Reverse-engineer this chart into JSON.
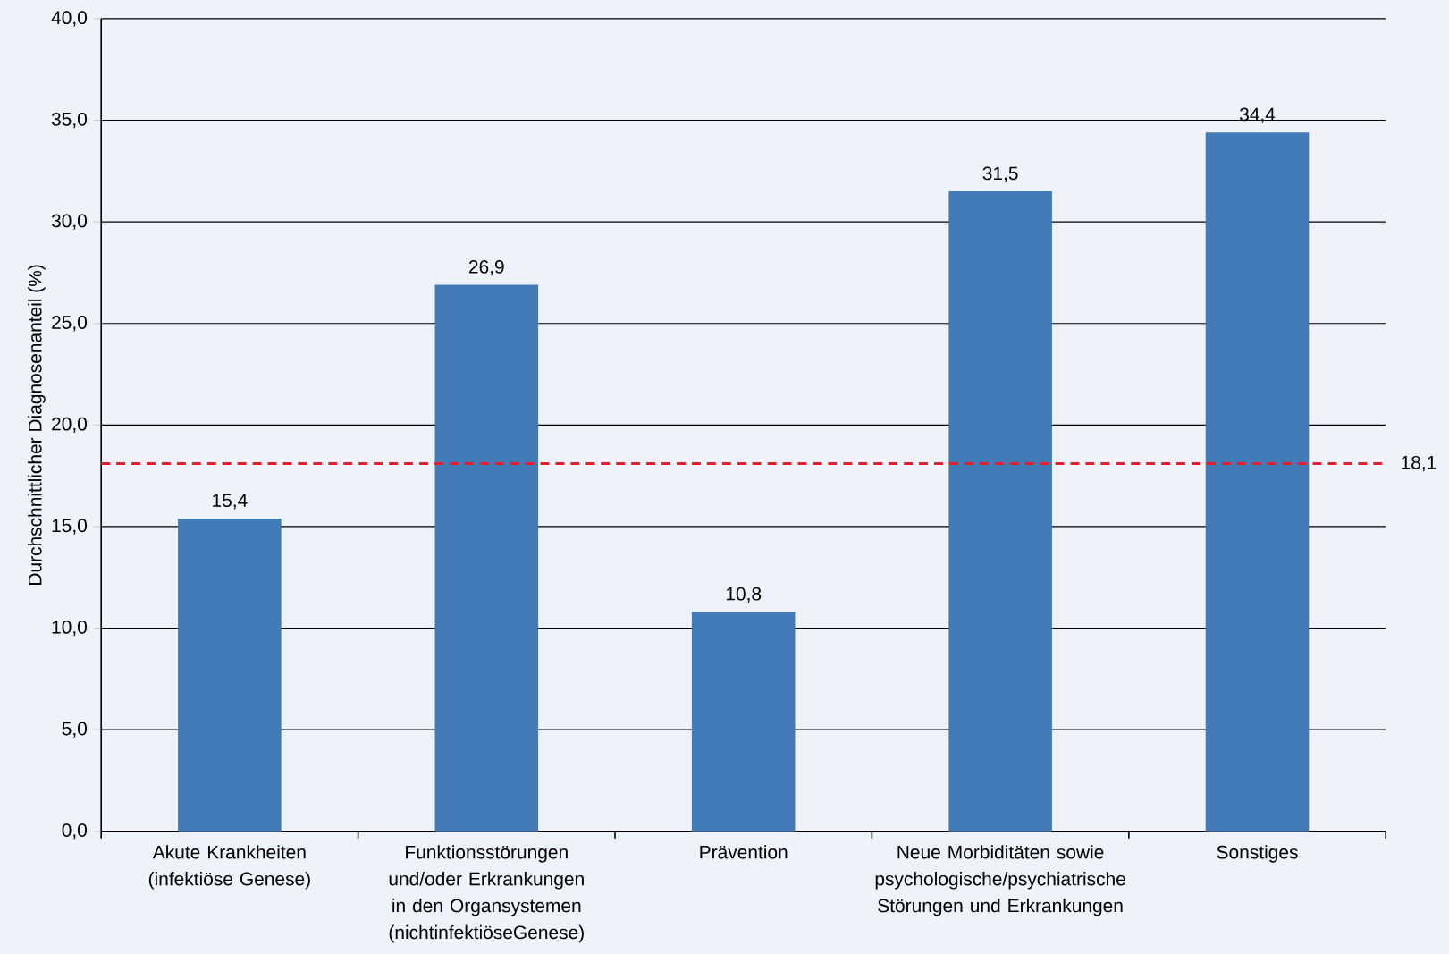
{
  "chart_data": {
    "type": "bar",
    "ylabel": "Durchschnittlicher Diagnosenanteil (%)",
    "categories": [
      "Akute Krankheiten (infektiöse Genese)",
      "Funktionsstörungen und/oder Erkrankungen in den Organsystemen (nichtinfektiöseGenese)",
      "Prävention",
      "Neue Morbiditäten sowie psychologische/psychiatrische Störungen und Erkrankungen",
      "Sonstiges"
    ],
    "values": [
      15.4,
      26.9,
      10.8,
      31.5,
      34.4
    ],
    "value_labels": [
      "15,4",
      "26,9",
      "10,8",
      "31,5",
      "34,4"
    ],
    "color": "#437ab8",
    "ylim": [
      0,
      40
    ],
    "yticks": [
      {
        "value": 0,
        "label": "0,0"
      },
      {
        "value": 5,
        "label": "5,0"
      },
      {
        "value": 10,
        "label": "10,0"
      },
      {
        "value": 15,
        "label": "15,0"
      },
      {
        "value": 20,
        "label": "20,0"
      },
      {
        "value": 25,
        "label": "25,0"
      },
      {
        "value": 30,
        "label": "30,0"
      },
      {
        "value": 35,
        "label": "35,0"
      },
      {
        "value": 40,
        "label": "40,0"
      }
    ],
    "grid": "y",
    "ref_lines": [
      {
        "axis": "y",
        "value": 18.1,
        "label": "18,1",
        "color": "#e41e2b",
        "line_style": "dashed"
      }
    ]
  }
}
